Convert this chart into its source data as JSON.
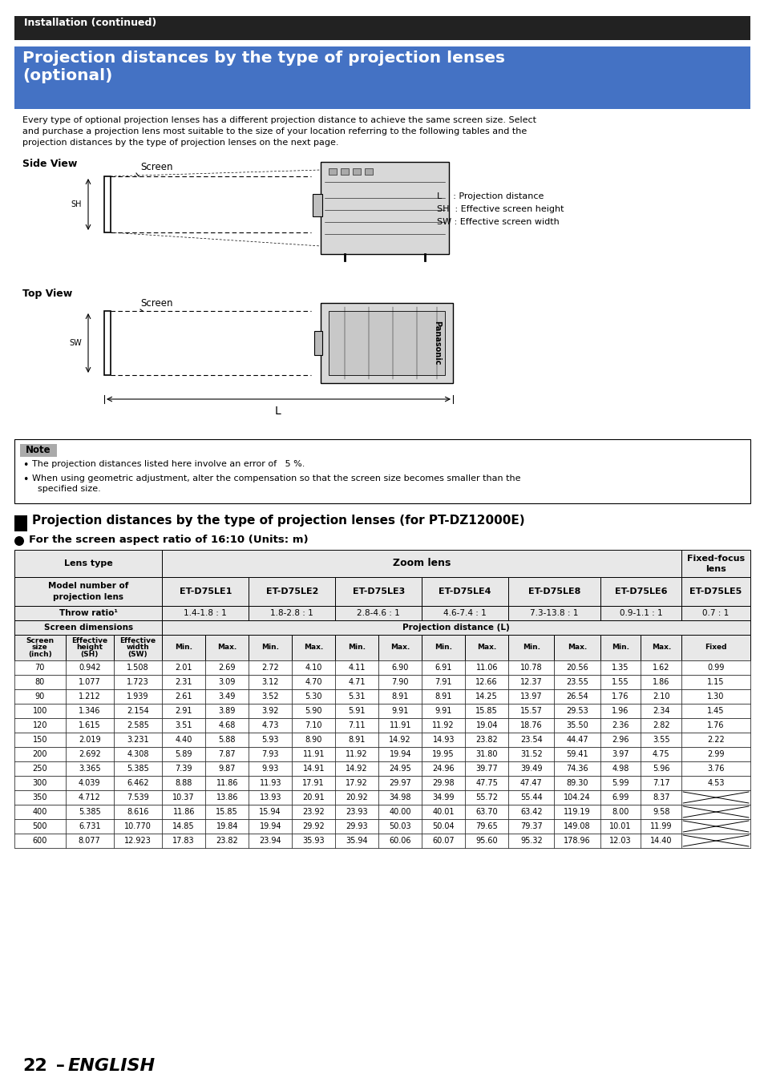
{
  "page_title": "Installation (continued)",
  "section_title_line1": "Projection distances by the type of projection lenses",
  "section_title_line2": "(optional)",
  "intro_text_lines": [
    "Every type of optional projection lenses has a different projection distance to achieve the same screen size. Select",
    "and purchase a projection lens most suitable to the size of your location referring to the following tables and the",
    "projection distances by the type of projection lenses on the next page."
  ],
  "side_view_label": "Side View",
  "top_view_label": "Top View",
  "legend_lines": [
    "L    : Projection distance",
    "SH  : Effective screen height",
    "SW : Effective screen width"
  ],
  "note_label": "Note",
  "note_bullet1": "The projection distances listed here involve an error of   5 %.",
  "note_bullet2a": "When using geometric adjustment, alter the compensation so that the screen size becomes smaller than the",
  "note_bullet2b": "  specified size.",
  "proj_section_title": "Projection distances by the type of projection lenses (for PT-DZ12000E)",
  "aspect_subtitle": "For the screen aspect ratio of 16:10 (Units: m)",
  "table_data": [
    [
      70,
      "0.942",
      "1.508",
      "2.01",
      "2.69",
      "2.72",
      "4.10",
      "4.11",
      "6.90",
      "6.91",
      "11.06",
      "10.78",
      "20.56",
      "1.35",
      "1.62",
      "0.99"
    ],
    [
      80,
      "1.077",
      "1.723",
      "2.31",
      "3.09",
      "3.12",
      "4.70",
      "4.71",
      "7.90",
      "7.91",
      "12.66",
      "12.37",
      "23.55",
      "1.55",
      "1.86",
      "1.15"
    ],
    [
      90,
      "1.212",
      "1.939",
      "2.61",
      "3.49",
      "3.52",
      "5.30",
      "5.31",
      "8.91",
      "8.91",
      "14.25",
      "13.97",
      "26.54",
      "1.76",
      "2.10",
      "1.30"
    ],
    [
      100,
      "1.346",
      "2.154",
      "2.91",
      "3.89",
      "3.92",
      "5.90",
      "5.91",
      "9.91",
      "9.91",
      "15.85",
      "15.57",
      "29.53",
      "1.96",
      "2.34",
      "1.45"
    ],
    [
      120,
      "1.615",
      "2.585",
      "3.51",
      "4.68",
      "4.73",
      "7.10",
      "7.11",
      "11.91",
      "11.92",
      "19.04",
      "18.76",
      "35.50",
      "2.36",
      "2.82",
      "1.76"
    ],
    [
      150,
      "2.019",
      "3.231",
      "4.40",
      "5.88",
      "5.93",
      "8.90",
      "8.91",
      "14.92",
      "14.93",
      "23.82",
      "23.54",
      "44.47",
      "2.96",
      "3.55",
      "2.22"
    ],
    [
      200,
      "2.692",
      "4.308",
      "5.89",
      "7.87",
      "7.93",
      "11.91",
      "11.92",
      "19.94",
      "19.95",
      "31.80",
      "31.52",
      "59.41",
      "3.97",
      "4.75",
      "2.99"
    ],
    [
      250,
      "3.365",
      "5.385",
      "7.39",
      "9.87",
      "9.93",
      "14.91",
      "14.92",
      "24.95",
      "24.96",
      "39.77",
      "39.49",
      "74.36",
      "4.98",
      "5.96",
      "3.76"
    ],
    [
      300,
      "4.039",
      "6.462",
      "8.88",
      "11.86",
      "11.93",
      "17.91",
      "17.92",
      "29.97",
      "29.98",
      "47.75",
      "47.47",
      "89.30",
      "5.99",
      "7.17",
      "4.53"
    ],
    [
      350,
      "4.712",
      "7.539",
      "10.37",
      "13.86",
      "13.93",
      "20.91",
      "20.92",
      "34.98",
      "34.99",
      "55.72",
      "55.44",
      "104.24",
      "6.99",
      "8.37",
      ""
    ],
    [
      400,
      "5.385",
      "8.616",
      "11.86",
      "15.85",
      "15.94",
      "23.92",
      "23.93",
      "40.00",
      "40.01",
      "63.70",
      "63.42",
      "119.19",
      "8.00",
      "9.58",
      ""
    ],
    [
      500,
      "6.731",
      "10.770",
      "14.85",
      "19.84",
      "19.94",
      "29.92",
      "29.93",
      "50.03",
      "50.04",
      "79.65",
      "79.37",
      "149.08",
      "10.01",
      "11.99",
      ""
    ],
    [
      600,
      "8.077",
      "12.923",
      "17.83",
      "23.82",
      "23.94",
      "35.93",
      "35.94",
      "60.06",
      "60.07",
      "95.60",
      "95.32",
      "178.96",
      "12.03",
      "14.40",
      ""
    ]
  ],
  "footer_text": "22",
  "footer_english": "ENGLISH",
  "bg_color": "#ffffff",
  "header_bg": "#222222",
  "header_fg": "#ffffff",
  "section_title_bg": "#4472c4",
  "section_title_fg": "#ffffff",
  "note_bg": "#aaaaaa",
  "table_header_bg": "#e8e8e8",
  "table_border": "#888888"
}
